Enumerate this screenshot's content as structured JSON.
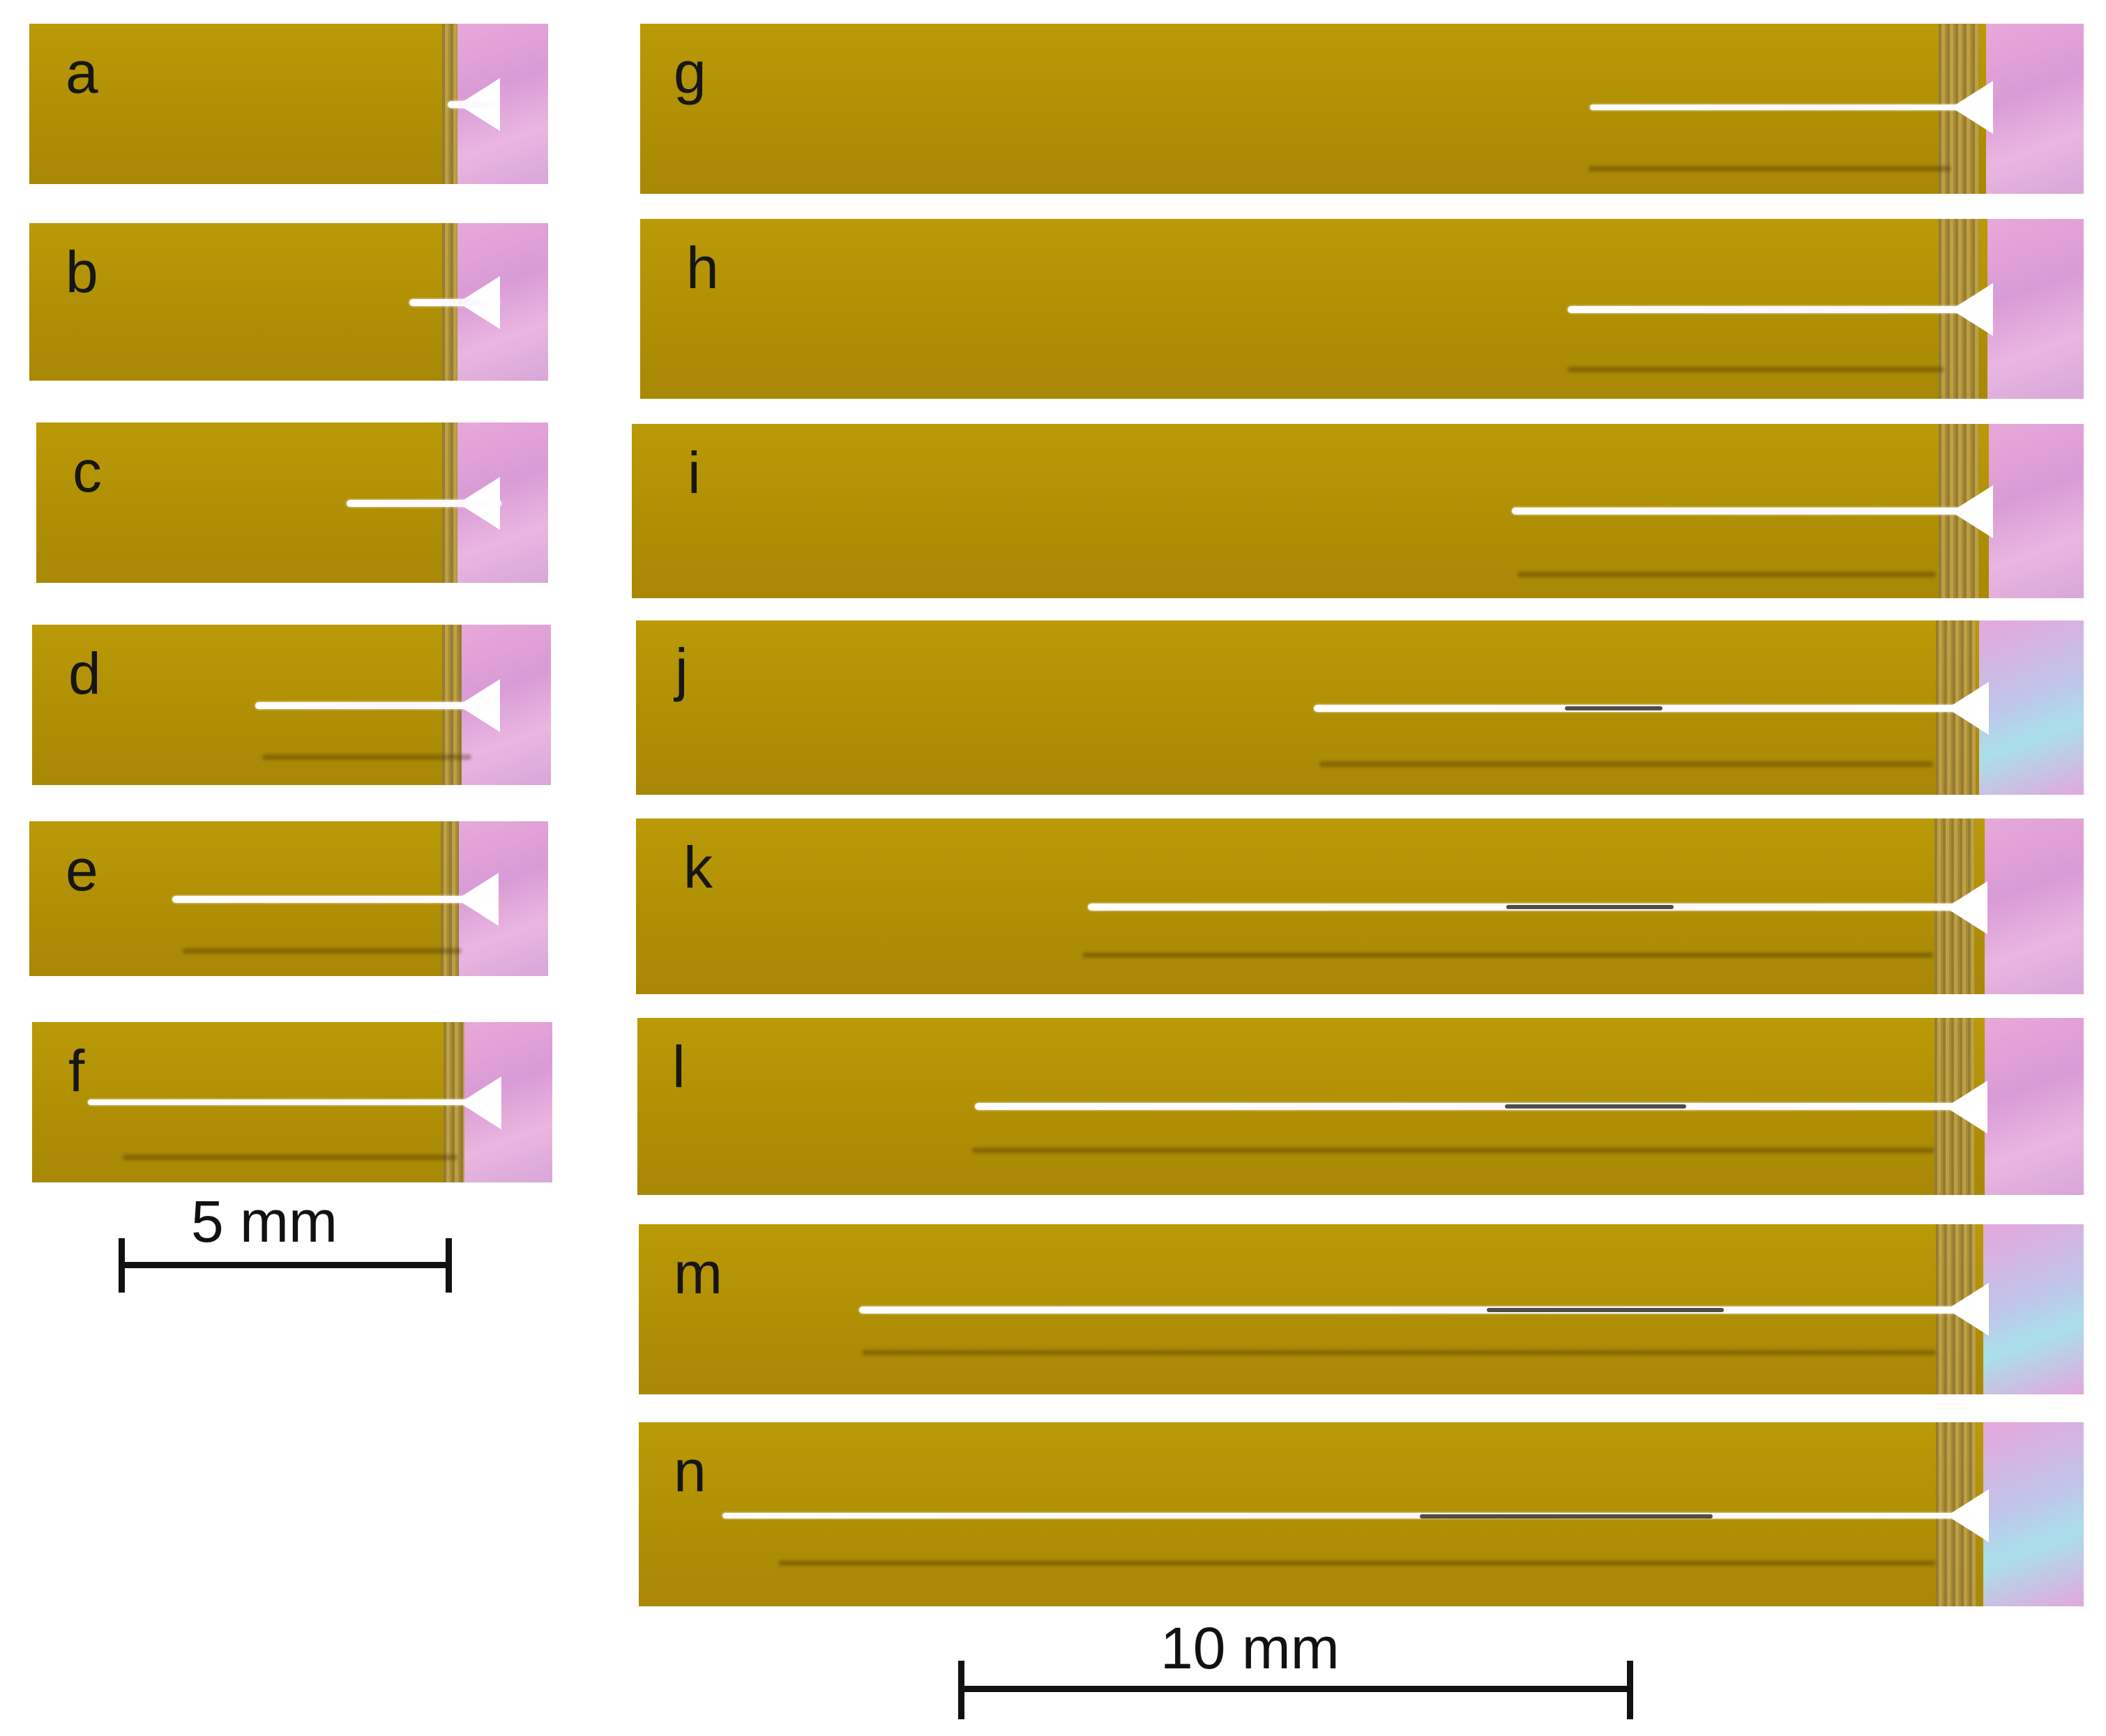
{
  "figure": {
    "left_panels": [
      {
        "id": "a",
        "label": "a"
      },
      {
        "id": "b",
        "label": "b"
      },
      {
        "id": "c",
        "label": "c"
      },
      {
        "id": "d",
        "label": "d"
      },
      {
        "id": "e",
        "label": "e"
      },
      {
        "id": "f",
        "label": "f"
      }
    ],
    "right_panels": [
      {
        "id": "g",
        "label": "g"
      },
      {
        "id": "h",
        "label": "h"
      },
      {
        "id": "i",
        "label": "i"
      },
      {
        "id": "j",
        "label": "j"
      },
      {
        "id": "k",
        "label": "k"
      },
      {
        "id": "l",
        "label": "l"
      },
      {
        "id": "m",
        "label": "m"
      },
      {
        "id": "n",
        "label": "n"
      }
    ],
    "scalebars": {
      "left": {
        "label": "5 mm"
      },
      "right": {
        "label": "10 mm"
      }
    },
    "colors": {
      "film": "#b3940a",
      "crack": "#ffffff",
      "substrate": "#e0a6d8",
      "scalebar": "#111111"
    }
  }
}
